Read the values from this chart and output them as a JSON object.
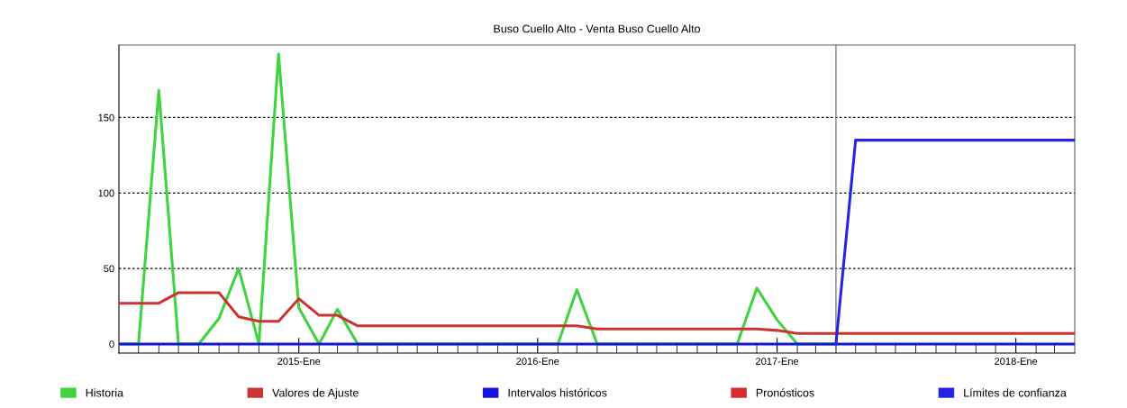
{
  "chart_data": {
    "type": "line",
    "title": "Buso Cuello Alto - Venta Buso Cuello Alto",
    "series": [
      {
        "name": "Historia",
        "color": "#3fd43f",
        "x": [
          "2014-04",
          "2014-05",
          "2014-06",
          "2014-07",
          "2014-08",
          "2014-09",
          "2014-10",
          "2014-11",
          "2014-12",
          "2015-01",
          "2015-02",
          "2015-03",
          "2015-04",
          "2015-05",
          "2015-06",
          "2015-07",
          "2015-08",
          "2015-09",
          "2015-10",
          "2015-11",
          "2015-12",
          "2016-01",
          "2016-02",
          "2016-03",
          "2016-04",
          "2016-05",
          "2016-06",
          "2016-07",
          "2016-08",
          "2016-09",
          "2016-10",
          "2016-11",
          "2016-12",
          "2017-01",
          "2017-02",
          "2017-03",
          "2017-04"
        ],
        "values": [
          0,
          0,
          168,
          0,
          0,
          17,
          50,
          0,
          192,
          24,
          0,
          23,
          0,
          0,
          0,
          0,
          0,
          0,
          0,
          0,
          0,
          0,
          0,
          36,
          0,
          0,
          0,
          0,
          0,
          0,
          0,
          0,
          37,
          16,
          0,
          0,
          0
        ]
      },
      {
        "name": "Valores de Ajuste",
        "color": "#cc3333",
        "x": [
          "2014-04",
          "2014-05",
          "2014-06",
          "2014-07",
          "2014-08",
          "2014-09",
          "2014-10",
          "2014-11",
          "2014-12",
          "2015-01",
          "2015-02",
          "2015-03",
          "2015-04",
          "2015-05",
          "2015-06",
          "2015-07",
          "2015-08",
          "2015-09",
          "2015-10",
          "2015-11",
          "2015-12",
          "2016-01",
          "2016-02",
          "2016-03",
          "2016-04",
          "2016-05",
          "2016-06",
          "2016-07",
          "2016-08",
          "2016-09",
          "2016-10",
          "2016-11",
          "2016-12",
          "2017-01",
          "2017-02",
          "2017-03",
          "2017-04"
        ],
        "values": [
          27,
          27,
          27,
          34,
          34,
          34,
          18,
          15,
          15,
          30,
          19,
          19,
          12,
          12,
          12,
          12,
          12,
          12,
          12,
          12,
          12,
          12,
          12,
          12,
          10,
          10,
          10,
          10,
          10,
          10,
          10,
          10,
          10,
          9,
          7,
          7,
          7
        ]
      },
      {
        "name": "Intervalos históricos",
        "color": "#1414dc",
        "x": [
          "2014-04",
          "2018-04"
        ],
        "values": [
          0,
          0
        ]
      },
      {
        "name": "Pronósticos",
        "color": "#d92b2b",
        "x": [
          "2017-04",
          "2018-04"
        ],
        "values": [
          7,
          7
        ]
      },
      {
        "name": "Límites de confianza",
        "color": "#2424e8",
        "x": [
          "2017-04",
          "2017-05",
          "2018-04"
        ],
        "values": [
          0,
          135,
          135
        ]
      }
    ],
    "xlim": [
      "2014-04",
      "2018-04"
    ],
    "xticks": [
      {
        "value": "2014-05",
        "label": null
      },
      {
        "value": "2014-06",
        "label": null
      },
      {
        "value": "2014-07",
        "label": null
      },
      {
        "value": "2014-08",
        "label": null
      },
      {
        "value": "2014-09",
        "label": null
      },
      {
        "value": "2014-10",
        "label": null
      },
      {
        "value": "2014-11",
        "label": null
      },
      {
        "value": "2014-12",
        "label": null
      },
      {
        "value": "2015-01",
        "label": "2015-Ene"
      },
      {
        "value": "2015-02",
        "label": null
      },
      {
        "value": "2015-03",
        "label": null
      },
      {
        "value": "2015-04",
        "label": null
      },
      {
        "value": "2015-05",
        "label": null
      },
      {
        "value": "2015-06",
        "label": null
      },
      {
        "value": "2015-07",
        "label": null
      },
      {
        "value": "2015-08",
        "label": null
      },
      {
        "value": "2015-09",
        "label": null
      },
      {
        "value": "2015-10",
        "label": null
      },
      {
        "value": "2015-11",
        "label": null
      },
      {
        "value": "2015-12",
        "label": null
      },
      {
        "value": "2016-01",
        "label": "2016-Ene"
      },
      {
        "value": "2016-02",
        "label": null
      },
      {
        "value": "2016-03",
        "label": null
      },
      {
        "value": "2016-04",
        "label": null
      },
      {
        "value": "2016-05",
        "label": null
      },
      {
        "value": "2016-06",
        "label": null
      },
      {
        "value": "2016-07",
        "label": null
      },
      {
        "value": "2016-08",
        "label": null
      },
      {
        "value": "2016-09",
        "label": null
      },
      {
        "value": "2016-10",
        "label": null
      },
      {
        "value": "2016-11",
        "label": null
      },
      {
        "value": "2016-12",
        "label": null
      },
      {
        "value": "2017-01",
        "label": "2017-Ene"
      },
      {
        "value": "2017-02",
        "label": null
      },
      {
        "value": "2017-03",
        "label": null
      },
      {
        "value": "2017-04",
        "label": null
      },
      {
        "value": "2017-05",
        "label": null
      },
      {
        "value": "2017-06",
        "label": null
      },
      {
        "value": "2017-07",
        "label": null
      },
      {
        "value": "2017-08",
        "label": null
      },
      {
        "value": "2017-09",
        "label": null
      },
      {
        "value": "2017-10",
        "label": null
      },
      {
        "value": "2017-11",
        "label": null
      },
      {
        "value": "2017-12",
        "label": null
      },
      {
        "value": "2018-01",
        "label": "2018-Ene"
      },
      {
        "value": "2018-02",
        "label": null
      },
      {
        "value": "2018-03",
        "label": null
      }
    ],
    "ylim": [
      -6,
      198
    ],
    "yticks": [
      0,
      50,
      100,
      150
    ],
    "grid": "y",
    "legend": "bottom",
    "line_style": "solid",
    "marker": "none",
    "ref_lines": [
      {
        "axis": "x",
        "value": "2017-04",
        "color": "#808080"
      }
    ]
  }
}
